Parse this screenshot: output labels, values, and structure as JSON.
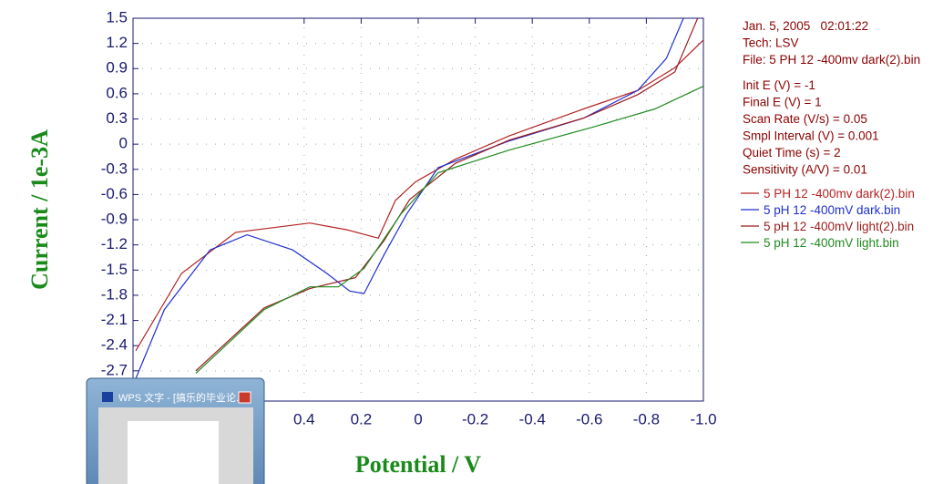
{
  "chart_data": {
    "type": "line",
    "x_label": "Potential / V",
    "y_label": "Current / 1e-3A",
    "xlim": [
      1.0,
      -1.0
    ],
    "ylim": [
      -3.06,
      1.5
    ],
    "xticks": [
      0.4,
      0.2,
      0,
      -0.2,
      -0.4,
      -0.6,
      -0.8,
      {
        "value": -1.0,
        "label": "-1.0"
      }
    ],
    "yticks": [
      1.5,
      1.2,
      0.9,
      0.6,
      0.3,
      0,
      -0.3,
      -0.6,
      -0.9,
      -1.2,
      -1.5,
      -1.8,
      -2.1,
      -2.4,
      -2.7
    ],
    "grid": true,
    "info": [
      "Jan. 5, 2005   02:01:22",
      "Tech: LSV",
      "File: 5 PH 12 -400mv dark(2).bin",
      "Init E (V) = -1",
      "Final E (V) = 1",
      "Scan Rate (V/s) = 0.05",
      "Smpl Interval (V) = 0.001",
      "Quiet Time (s) = 2",
      "Sensitivity (A/V) = 0.01"
    ],
    "series": [
      {
        "name": "5 PH 12 -400mv dark(2).bin",
        "color": "#b22222",
        "x": [
          0.99,
          0.83,
          0.64,
          0.38,
          0.25,
          0.14,
          0.08,
          0.01,
          -0.13,
          -0.32,
          -0.58,
          -0.77,
          -0.9,
          -1.0
        ],
        "values": [
          -2.46,
          -1.54,
          -1.05,
          -0.94,
          -1.02,
          -1.12,
          -0.67,
          -0.45,
          -0.18,
          0.1,
          0.42,
          0.64,
          0.91,
          1.24
        ]
      },
      {
        "name": "5 pH 12 -400mV dark.bin",
        "color": "#1f2fd0",
        "x": [
          0.99,
          0.89,
          0.73,
          0.6,
          0.44,
          0.32,
          0.24,
          0.19,
          0.12,
          0.04,
          -0.07,
          -0.32,
          -0.58,
          -0.77,
          -0.87,
          -0.93
        ],
        "values": [
          -2.79,
          -1.97,
          -1.26,
          -1.08,
          -1.26,
          -1.54,
          -1.75,
          -1.78,
          -1.32,
          -0.83,
          -0.28,
          0.04,
          0.31,
          0.64,
          1.02,
          1.5
        ]
      },
      {
        "name": "5 pH 12 -400mV light(2).bin",
        "color": "#9a1c1c",
        "x": [
          0.78,
          0.54,
          0.38,
          0.22,
          0.12,
          0.03,
          -0.13,
          -0.32,
          -0.58,
          -0.77,
          -0.9,
          -0.98
        ],
        "values": [
          -2.7,
          -1.95,
          -1.72,
          -1.59,
          -1.15,
          -0.66,
          -0.23,
          0.05,
          0.31,
          0.59,
          0.86,
          1.5
        ]
      },
      {
        "name": "5 pH 12 -400mV light.bin",
        "color": "#1f8a1f",
        "x": [
          0.78,
          0.54,
          0.38,
          0.28,
          0.19,
          0.06,
          -0.07,
          -0.32,
          -0.61,
          -0.83,
          -1.0
        ],
        "values": [
          -2.73,
          -1.97,
          -1.7,
          -1.7,
          -1.48,
          -0.83,
          -0.34,
          -0.07,
          0.2,
          0.42,
          0.69
        ]
      }
    ]
  },
  "taskbar_preview": {
    "title": "WPS 文字 - [搞乐的毕业论..."
  }
}
